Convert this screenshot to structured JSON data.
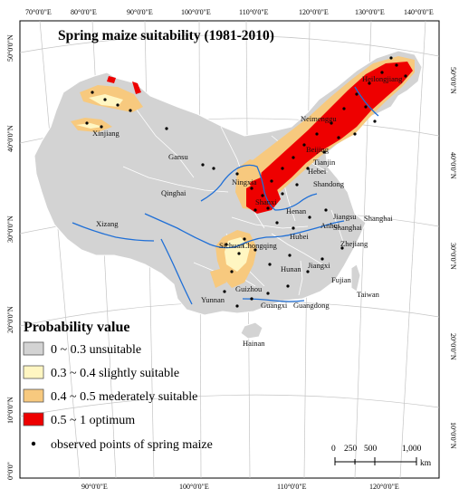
{
  "title": "Spring maize suitability (1981-2010)",
  "top_lon_labels": [
    "70°0'0\"E",
    "80°0'0\"E",
    "90°0'0\"E",
    "100°0'0\"E",
    "110°0'0\"E",
    "120°0'0\"E",
    "130°0'0\"E",
    "140°0'0\"E"
  ],
  "bottom_lon_labels": [
    "90°0'0\"E",
    "100°0'0\"E",
    "110°0'0\"E",
    "120°0'0\"E"
  ],
  "left_lat_labels": [
    "50°0'0\"N",
    "40°0'0\"N",
    "30°0'0\"N",
    "20°0'0\"N",
    "10°0'0\"N",
    "0°0'0\""
  ],
  "right_lat_labels": [
    "50°0'0\"N",
    "40°0'0\"N",
    "30°0'0\"N",
    "20°0'0\"N",
    "10°0'0\"N"
  ],
  "places": [
    "Heilongjiang",
    "Neimenggu",
    "Xinjiang",
    "Gansu",
    "Beijing",
    "Tianjin",
    "Hebei",
    "Shandong",
    "Ningxia",
    "Shanxi",
    "Qinghai",
    "Henan",
    "Jiangsu",
    "Shanghai",
    "Anhui",
    "Xizang",
    "Sichuan",
    "Chongqing",
    "Hubei",
    "Zhejiang",
    "Hunan",
    "Jiangxi",
    "Fujian",
    "Guizhou",
    "Taiwan",
    "Yunnan",
    "Guangxi",
    "Guangdong",
    "Hainan"
  ],
  "legend": {
    "title": "Probability value",
    "items": [
      {
        "label": "0 ~ 0.3 unsuitable",
        "color": "#d3d3d3"
      },
      {
        "label": "0.3 ~ 0.4 slightly suitable",
        "color": "#fff6c2"
      },
      {
        "label": "0.4 ~ 0.5 mederately suitable",
        "color": "#f7c97e"
      },
      {
        "label": "0.5 ~ 1 optimum",
        "color": "#ee0000"
      }
    ],
    "points_label": "observed points of spring maize"
  },
  "scale_bar": {
    "ticks": [
      "0",
      "250",
      "500",
      "1,000"
    ],
    "unit": "km"
  },
  "colors": {
    "land": "#d3d3d3",
    "river": "#1f6fd6",
    "border": "#ffffff",
    "graticule": "#bdbdbd",
    "point": "#000000"
  }
}
